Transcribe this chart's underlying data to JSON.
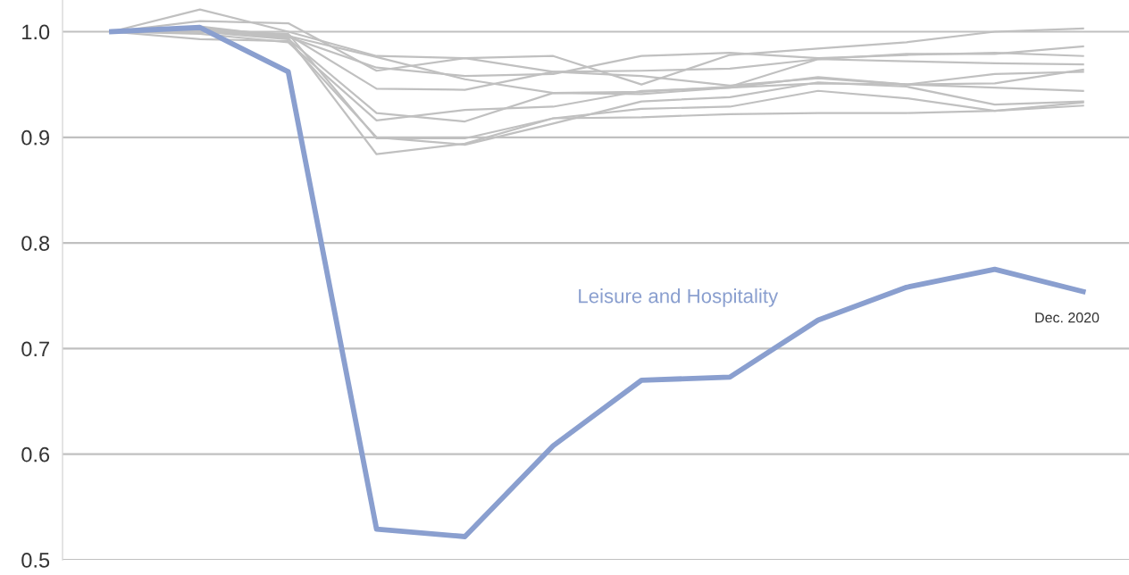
{
  "chart_data": {
    "type": "line",
    "categories": [
      null,
      null,
      null,
      null,
      null,
      null,
      null,
      null,
      null,
      null,
      null,
      null
    ],
    "series": [
      {
        "color": "#c0c0c0",
        "values": [
          1.0,
          1.021,
          1.0,
          0.977,
          0.975,
          0.977,
          0.95,
          0.978,
          0.984,
          0.99,
          1.0,
          1.003
        ]
      },
      {
        "color": "#c0c0c0",
        "values": [
          1.0,
          1.01,
          1.008,
          0.963,
          0.975,
          0.962,
          0.963,
          0.965,
          0.974,
          0.979,
          0.979,
          0.986
        ]
      },
      {
        "color": "#c0c0c0",
        "values": [
          1.0,
          1.005,
          0.995,
          0.966,
          0.958,
          0.96,
          0.977,
          0.98,
          0.975,
          0.978,
          0.98,
          0.977
        ]
      },
      {
        "color": "#c0c0c0",
        "values": [
          1.0,
          1.0,
          0.996,
          0.976,
          0.955,
          0.942,
          0.943,
          0.948,
          0.974,
          0.972,
          0.97,
          0.969
        ]
      },
      {
        "color": "#c0c0c0",
        "values": [
          1.0,
          1.003,
          0.997,
          0.946,
          0.945,
          0.962,
          0.958,
          0.949,
          0.956,
          0.95,
          0.951,
          0.964
        ]
      },
      {
        "color": "#c0c0c0",
        "values": [
          1.0,
          1.0,
          0.993,
          0.923,
          0.915,
          0.942,
          0.941,
          0.947,
          0.957,
          0.95,
          0.96,
          0.962
        ]
      },
      {
        "color": "#c0c0c0",
        "values": [
          1.0,
          0.998,
          0.99,
          0.916,
          0.926,
          0.929,
          0.944,
          0.947,
          0.951,
          0.95,
          0.947,
          0.944
        ]
      },
      {
        "color": "#c0c0c0",
        "values": [
          1.0,
          0.993,
          0.991,
          0.9,
          0.893,
          0.913,
          0.934,
          0.938,
          0.952,
          0.948,
          0.931,
          0.934
        ]
      },
      {
        "color": "#c0c0c0",
        "values": [
          1.0,
          1.002,
          0.994,
          0.884,
          0.894,
          0.918,
          0.927,
          0.929,
          0.944,
          0.937,
          0.925,
          0.93
        ]
      },
      {
        "color": "#c0c0c0",
        "values": [
          1.0,
          1.0,
          0.998,
          0.899,
          0.899,
          0.918,
          0.919,
          0.922,
          0.923,
          0.923,
          0.925,
          0.933
        ]
      },
      {
        "name": "Leisure and Hospitality",
        "color": "#8a9fcf",
        "values": [
          1.0,
          1.004,
          0.962,
          0.529,
          0.522,
          0.608,
          0.67,
          0.673,
          0.727,
          0.758,
          0.775,
          0.754
        ]
      }
    ],
    "annotations": [
      "Dec. 2020"
    ],
    "ylim": [
      0.5,
      1.03
    ],
    "yticks": [
      0.5,
      0.6,
      0.7,
      0.8,
      0.9,
      {
        "value": 1.0,
        "label": "1.0"
      }
    ],
    "grid": "y",
    "tick_labels": "y",
    "legend": false,
    "marker": "none",
    "line_style": "solid"
  }
}
